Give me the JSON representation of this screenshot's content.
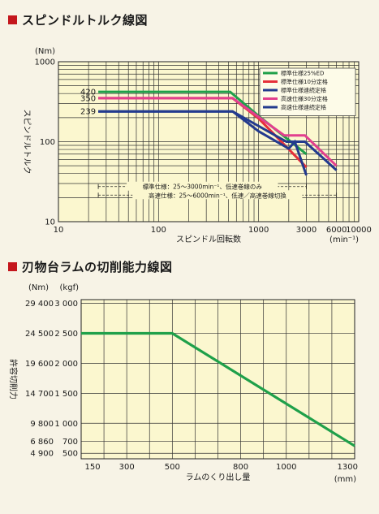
{
  "titles": {
    "chart1": "スピンドルトルク線図",
    "chart2": "刃物台ラムの切削能力線図"
  },
  "colors": {
    "background": "#f7f3e6",
    "plot_area": "#fbf7cf",
    "title_marker": "#c4161c"
  },
  "chart_data": [
    {
      "type": "line",
      "title": "スピンドルトルク線図",
      "xlabel": "スピンドル回転数",
      "xunit": "(min⁻¹)",
      "ylabel": "スピンドルトルク",
      "yunit": "(Nm)",
      "xscale": "log",
      "yscale": "log",
      "xlim": [
        10,
        10000
      ],
      "ylim": [
        10,
        1000
      ],
      "x_tick_labels": [
        "10",
        "100",
        "1000",
        "3000",
        "6000",
        "10000"
      ],
      "x_tick_values": [
        10,
        100,
        1000,
        3000,
        6000,
        10000
      ],
      "y_tick_labels": [
        "10",
        "100",
        "1000"
      ],
      "y_tick_values": [
        10,
        100,
        1000
      ],
      "grid": true,
      "value_labels": [
        "420",
        "350",
        "239"
      ],
      "value_label_values": [
        420,
        350,
        239
      ],
      "legend_position": "top-right",
      "series": [
        {
          "name": "標準仕様25%ED",
          "color": "#1fa04a",
          "x": [
            25,
            520,
            1000,
            3000
          ],
          "y": [
            420,
            420,
            210,
            70
          ]
        },
        {
          "name": "標準仕様10分定格",
          "color": "#e5303a",
          "x": [
            25,
            550,
            1000,
            3000
          ],
          "y": [
            350,
            350,
            195,
            48
          ]
        },
        {
          "name": "標準仕様連続定格",
          "color": "#233a8e",
          "x": [
            25,
            550,
            1000,
            2000,
            2300,
            3000
          ],
          "y": [
            239,
            239,
            135,
            82,
            100,
            38
          ]
        },
        {
          "name": "高速仕様30分定格",
          "color": "#e23f8e",
          "x": [
            25,
            550,
            1800,
            2900,
            6000
          ],
          "y": [
            350,
            350,
            120,
            120,
            50
          ]
        },
        {
          "name": "高速仕様連続定格",
          "color": "#233a8e",
          "x": [
            25,
            550,
            1900,
            2900,
            6000
          ],
          "y": [
            239,
            239,
            100,
            100,
            44
          ]
        }
      ],
      "annotations": [
        {
          "text": "標準仕様：25～3000min⁻¹、低速巻線のみ",
          "x_from": 25,
          "x_to": 3000,
          "y": 27.5
        },
        {
          "text": "高速仕様：25～6000min⁻¹、低速／高速巻線切換",
          "x_from": 25,
          "x_to": 6000,
          "y": 21.5
        }
      ]
    },
    {
      "type": "line",
      "title": "刃物台ラムの切削能力線図",
      "xlabel": "ラムのくり出し量",
      "xunit": "(mm)",
      "y1_unit": "(Nm)",
      "y2_unit": "(kgf)",
      "ylabel": "許容切削力",
      "xlim": [
        100,
        1300
      ],
      "ylim": [
        4000,
        30000
      ],
      "x_tick_labels": [
        "150",
        "300",
        "500",
        "800",
        "1000",
        "1300"
      ],
      "x_tick_values": [
        150,
        300,
        500,
        800,
        1000,
        1300
      ],
      "y1_tick_labels": [
        "29 400",
        "24 500",
        "19 600",
        "14 700",
        "9 800",
        "6 860",
        "4 900"
      ],
      "y2_tick_labels": [
        "3 000",
        "2 500",
        "2 000",
        "1 500",
        "1 000",
        "700",
        "500"
      ],
      "y_tick_values": [
        29400,
        24500,
        19600,
        14700,
        9800,
        6860,
        4900
      ],
      "grid": true,
      "series": [
        {
          "name": "",
          "color": "#1fa04a",
          "x": [
            100,
            500,
            1300
          ],
          "y": [
            24500,
            24500,
            6100
          ]
        }
      ]
    }
  ]
}
